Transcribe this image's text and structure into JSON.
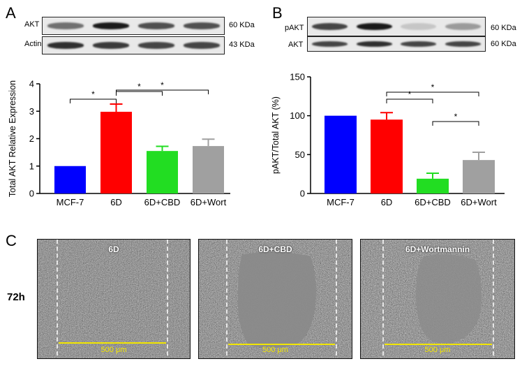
{
  "panels": {
    "a": {
      "letter": "A",
      "blots": [
        {
          "label": "AKT",
          "kda": "60 KDa",
          "intensity": [
            0.55,
            0.95,
            0.7,
            0.7
          ]
        },
        {
          "label": "Actin",
          "kda": "43 KDa",
          "intensity": [
            0.85,
            0.8,
            0.75,
            0.75
          ]
        }
      ]
    },
    "b": {
      "letter": "B",
      "blots": [
        {
          "label": "pAKT",
          "kda": "60 KDa",
          "intensity": [
            0.75,
            0.95,
            0.15,
            0.35
          ]
        },
        {
          "label": "AKT",
          "kda": "60 KDa",
          "intensity": [
            0.75,
            0.85,
            0.75,
            0.75
          ]
        }
      ]
    },
    "c": {
      "letter": "C",
      "row_label": "72h",
      "images": [
        {
          "label": "6D",
          "scale": "500 μm"
        },
        {
          "label": "6D+CBD",
          "scale": "500 μm"
        },
        {
          "label": "6D+Wortmannin",
          "scale": "500 μm"
        }
      ]
    }
  },
  "chart_data": [
    {
      "type": "bar",
      "categories": [
        "MCF-7",
        "6D",
        "6D+CBD",
        "6D+Wort"
      ],
      "values": [
        1.0,
        2.98,
        1.55,
        1.73
      ],
      "errors": [
        0,
        0.28,
        0.17,
        0.25
      ],
      "colors": [
        "#0000ff",
        "#ff0000",
        "#22dd22",
        "#a0a0a0"
      ],
      "ylabel": "Total AKT Relative Expression",
      "ylim": [
        0,
        4
      ],
      "yticks": [
        0,
        1,
        2,
        3,
        4
      ],
      "significance": [
        {
          "from": 0,
          "to": 1,
          "label": "*"
        },
        {
          "from": 1,
          "to": 2,
          "label": "*"
        },
        {
          "from": 1,
          "to": 3,
          "label": "*"
        }
      ]
    },
    {
      "type": "bar",
      "categories": [
        "MCF-7",
        "6D",
        "6D+CBD",
        "6D+Wort"
      ],
      "values": [
        100,
        95,
        19,
        43
      ],
      "errors": [
        0,
        9,
        7,
        10
      ],
      "colors": [
        "#0000ff",
        "#ff0000",
        "#22dd22",
        "#a0a0a0"
      ],
      "ylabel": "pAKT/Total AKT (%)",
      "ylim": [
        0,
        150
      ],
      "yticks": [
        0,
        50,
        100,
        150
      ],
      "significance": [
        {
          "from": 1,
          "to": 2,
          "label": "*"
        },
        {
          "from": 1,
          "to": 3,
          "label": "*"
        },
        {
          "from": 2,
          "to": 3,
          "label": "*"
        }
      ]
    }
  ]
}
